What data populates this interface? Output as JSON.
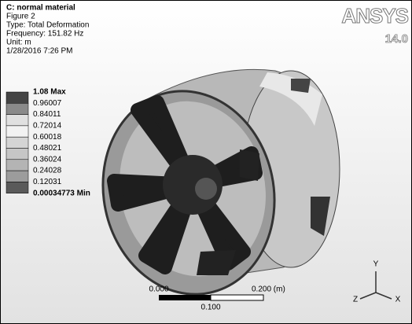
{
  "header": {
    "title": "C: normal material",
    "lines": [
      "Figure 2",
      "Type: Total Deformation",
      "Frequency: 151.82 Hz",
      "Unit: m",
      "1/28/2016 7:26 PM"
    ]
  },
  "logo": {
    "brand": "ANSYS",
    "version": "14.0"
  },
  "legend": {
    "labels": [
      "1.08 Max",
      "0.96007",
      "0.84011",
      "0.72014",
      "0.60018",
      "0.48021",
      "0.36024",
      "0.24028",
      "0.12031",
      "0.00034773 Min"
    ]
  },
  "scale_bar": {
    "left": "0.000",
    "right": "0.200 (m)",
    "middle": "0.100"
  },
  "triad": {
    "y": "Y",
    "z": "Z",
    "x": "X"
  }
}
